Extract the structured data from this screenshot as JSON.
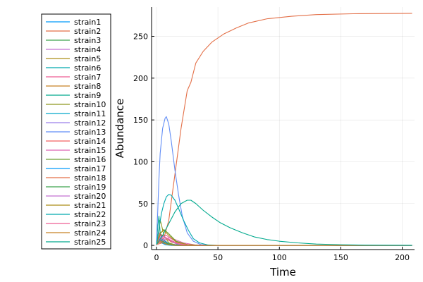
{
  "chart_data": {
    "type": "line",
    "xlabel": "Time",
    "ylabel": "Abundance",
    "xlim": [
      -4,
      210
    ],
    "ylim": [
      -5,
      285
    ],
    "xticks": [
      0,
      50,
      100,
      150,
      200
    ],
    "yticks": [
      0,
      50,
      100,
      150,
      200,
      250
    ],
    "grid": true,
    "legend_position": "top-left, outside plot area",
    "series": [
      {
        "name": "strain1",
        "color": "#009AFA",
        "points": [
          [
            0,
            1
          ],
          [
            2,
            4
          ],
          [
            4,
            3
          ],
          [
            7,
            1
          ],
          [
            10,
            0.3
          ],
          [
            15,
            0
          ],
          [
            208,
            0
          ]
        ]
      },
      {
        "name": "strain2",
        "color": "#E36F47",
        "points": [
          [
            0,
            1
          ],
          [
            5,
            3
          ],
          [
            10,
            30
          ],
          [
            15,
            85
          ],
          [
            20,
            140
          ],
          [
            25,
            185
          ],
          [
            28,
            195
          ],
          [
            32,
            218
          ],
          [
            38,
            232
          ],
          [
            45,
            243
          ],
          [
            55,
            253
          ],
          [
            65,
            260
          ],
          [
            75,
            266
          ],
          [
            90,
            271
          ],
          [
            110,
            274
          ],
          [
            130,
            276
          ],
          [
            160,
            277
          ],
          [
            208,
            277.5
          ]
        ]
      },
      {
        "name": "strain3",
        "color": "#3EA44E",
        "points": [
          [
            0,
            1
          ],
          [
            1,
            8
          ],
          [
            2,
            10
          ],
          [
            4,
            7
          ],
          [
            6,
            4
          ],
          [
            10,
            1
          ],
          [
            20,
            0
          ],
          [
            208,
            0
          ]
        ]
      },
      {
        "name": "strain4",
        "color": "#C371D2",
        "points": [
          [
            0,
            1
          ],
          [
            2,
            15
          ],
          [
            4,
            12
          ],
          [
            6,
            7
          ],
          [
            10,
            2
          ],
          [
            20,
            0
          ],
          [
            208,
            0
          ]
        ]
      },
      {
        "name": "strain5",
        "color": "#AC8E18",
        "points": [
          [
            0,
            1
          ],
          [
            3,
            6
          ],
          [
            6,
            5
          ],
          [
            10,
            2
          ],
          [
            18,
            0
          ],
          [
            208,
            0
          ]
        ]
      },
      {
        "name": "strain6",
        "color": "#00A9AD",
        "points": [
          [
            0,
            1
          ],
          [
            2,
            9
          ],
          [
            5,
            7
          ],
          [
            9,
            3
          ],
          [
            15,
            1
          ],
          [
            25,
            0
          ],
          [
            208,
            0
          ]
        ]
      },
      {
        "name": "strain7",
        "color": "#ED5E93",
        "points": [
          [
            0,
            1
          ],
          [
            4,
            10
          ],
          [
            8,
            12
          ],
          [
            12,
            8
          ],
          [
            18,
            3
          ],
          [
            28,
            0.5
          ],
          [
            40,
            0
          ],
          [
            208,
            0
          ]
        ]
      },
      {
        "name": "strain8",
        "color": "#C68225",
        "points": [
          [
            0,
            1
          ],
          [
            3,
            12
          ],
          [
            6,
            11
          ],
          [
            10,
            6
          ],
          [
            16,
            2
          ],
          [
            25,
            0
          ],
          [
            208,
            0
          ]
        ]
      },
      {
        "name": "strain9",
        "color": "#00A98D",
        "points": [
          [
            0,
            1
          ],
          [
            1,
            22
          ],
          [
            2,
            35
          ],
          [
            3,
            15
          ],
          [
            5,
            4
          ],
          [
            8,
            1
          ],
          [
            12,
            0
          ],
          [
            208,
            0
          ]
        ]
      },
      {
        "name": "strain10",
        "color": "#8E971E",
        "points": [
          [
            0,
            1
          ],
          [
            2,
            18
          ],
          [
            3,
            30
          ],
          [
            4,
            25
          ],
          [
            6,
            12
          ],
          [
            10,
            3
          ],
          [
            16,
            0
          ],
          [
            208,
            0
          ]
        ]
      },
      {
        "name": "strain11",
        "color": "#00A8CB",
        "points": [
          [
            0,
            1
          ],
          [
            2,
            5
          ],
          [
            4,
            4
          ],
          [
            8,
            1
          ],
          [
            14,
            0
          ],
          [
            208,
            0
          ]
        ]
      },
      {
        "name": "strain12",
        "color": "#9B7FE9",
        "points": [
          [
            0,
            1
          ],
          [
            3,
            8
          ],
          [
            5,
            6
          ],
          [
            9,
            2
          ],
          [
            15,
            0
          ],
          [
            208,
            0
          ]
        ]
      },
      {
        "name": "strain13",
        "color": "#618DF6",
        "points": [
          [
            0,
            1
          ],
          [
            1,
            40
          ],
          [
            2,
            80
          ],
          [
            3,
            110
          ],
          [
            5,
            140
          ],
          [
            7,
            152
          ],
          [
            8,
            154
          ],
          [
            10,
            145
          ],
          [
            12,
            125
          ],
          [
            15,
            90
          ],
          [
            18,
            60
          ],
          [
            21,
            35
          ],
          [
            25,
            15
          ],
          [
            30,
            5
          ],
          [
            36,
            1
          ],
          [
            45,
            0
          ],
          [
            208,
            0
          ]
        ]
      },
      {
        "name": "strain14",
        "color": "#F26161",
        "points": [
          [
            0,
            1
          ],
          [
            2,
            10
          ],
          [
            4,
            13
          ],
          [
            7,
            10
          ],
          [
            12,
            4
          ],
          [
            20,
            1
          ],
          [
            30,
            0
          ],
          [
            208,
            0
          ]
        ]
      },
      {
        "name": "strain15",
        "color": "#DD64B5",
        "points": [
          [
            0,
            1
          ],
          [
            5,
            6
          ],
          [
            10,
            9
          ],
          [
            15,
            7
          ],
          [
            22,
            3
          ],
          [
            32,
            0.5
          ],
          [
            45,
            0
          ],
          [
            208,
            0
          ]
        ]
      },
      {
        "name": "strain16",
        "color": "#6B9E32",
        "points": [
          [
            0,
            1
          ],
          [
            3,
            14
          ],
          [
            6,
            19
          ],
          [
            10,
            14
          ],
          [
            16,
            5
          ],
          [
            25,
            1
          ],
          [
            35,
            0
          ],
          [
            208,
            0
          ]
        ]
      },
      {
        "name": "strain17",
        "color": "#009AFA",
        "points": [
          [
            0,
            1
          ],
          [
            2,
            8
          ],
          [
            4,
            6
          ],
          [
            7,
            2
          ],
          [
            12,
            0
          ],
          [
            208,
            0
          ]
        ]
      },
      {
        "name": "strain18",
        "color": "#E36F47",
        "points": [
          [
            0,
            1
          ],
          [
            3,
            5
          ],
          [
            6,
            4
          ],
          [
            10,
            1
          ],
          [
            18,
            0
          ],
          [
            208,
            0
          ]
        ]
      },
      {
        "name": "strain19",
        "color": "#3EA44E",
        "points": [
          [
            0,
            1
          ],
          [
            2,
            6
          ],
          [
            5,
            5
          ],
          [
            9,
            2
          ],
          [
            15,
            0
          ],
          [
            208,
            0
          ]
        ]
      },
      {
        "name": "strain20",
        "color": "#C371D2",
        "points": [
          [
            0,
            1
          ],
          [
            3,
            10
          ],
          [
            6,
            11
          ],
          [
            10,
            7
          ],
          [
            16,
            2
          ],
          [
            25,
            0
          ],
          [
            208,
            0
          ]
        ]
      },
      {
        "name": "strain21",
        "color": "#AC8E18",
        "points": [
          [
            0,
            1
          ],
          [
            3,
            15
          ],
          [
            6,
            18
          ],
          [
            10,
            12
          ],
          [
            16,
            4
          ],
          [
            25,
            1
          ],
          [
            35,
            0
          ],
          [
            208,
            0
          ]
        ]
      },
      {
        "name": "strain22",
        "color": "#00A9AD",
        "points": [
          [
            0,
            1
          ],
          [
            2,
            20
          ],
          [
            4,
            38
          ],
          [
            6,
            50
          ],
          [
            8,
            58
          ],
          [
            10,
            61
          ],
          [
            12,
            60
          ],
          [
            15,
            54
          ],
          [
            18,
            44
          ],
          [
            22,
            30
          ],
          [
            26,
            18
          ],
          [
            30,
            8
          ],
          [
            35,
            3
          ],
          [
            42,
            0.5
          ],
          [
            50,
            0
          ],
          [
            208,
            0
          ]
        ]
      },
      {
        "name": "strain23",
        "color": "#ED5E93",
        "points": [
          [
            0,
            1
          ],
          [
            4,
            8
          ],
          [
            8,
            9
          ],
          [
            12,
            6
          ],
          [
            18,
            2
          ],
          [
            28,
            0
          ],
          [
            208,
            0
          ]
        ]
      },
      {
        "name": "strain24",
        "color": "#C68225",
        "points": [
          [
            0,
            1
          ],
          [
            2,
            4
          ],
          [
            5,
            3
          ],
          [
            9,
            1
          ],
          [
            15,
            0
          ],
          [
            208,
            0
          ]
        ]
      },
      {
        "name": "strain25",
        "color": "#00A98D",
        "points": [
          [
            0,
            1
          ],
          [
            5,
            12
          ],
          [
            10,
            26
          ],
          [
            15,
            40
          ],
          [
            20,
            50
          ],
          [
            25,
            54
          ],
          [
            28,
            54
          ],
          [
            32,
            50
          ],
          [
            38,
            42
          ],
          [
            45,
            34
          ],
          [
            52,
            27
          ],
          [
            60,
            21
          ],
          [
            70,
            15
          ],
          [
            80,
            10
          ],
          [
            90,
            7
          ],
          [
            100,
            5
          ],
          [
            115,
            3
          ],
          [
            130,
            1.6
          ],
          [
            150,
            0.8
          ],
          [
            170,
            0.3
          ],
          [
            208,
            0.1
          ]
        ]
      }
    ]
  }
}
